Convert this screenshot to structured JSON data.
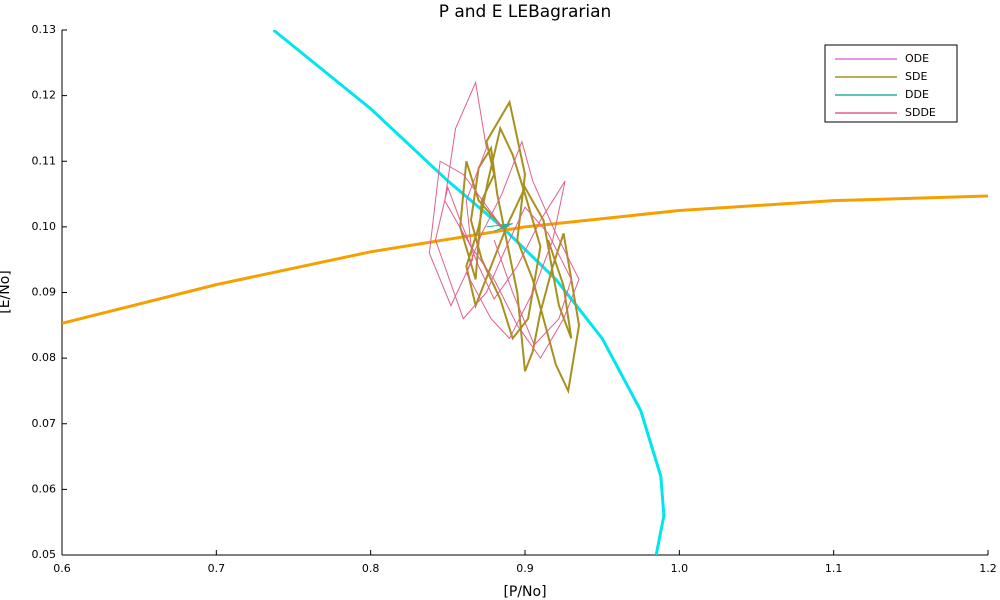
{
  "chart_data": {
    "type": "line",
    "title": "P and E LEBagrarian",
    "x_label": "[P/No]",
    "y_label": "[E/No]",
    "xlim": [
      0.6,
      1.2
    ],
    "xticks": [
      0.6,
      0.7,
      0.8,
      0.9,
      {
        "value": 1,
        "label": "1.0"
      },
      1.1,
      1.2
    ],
    "ylim": [
      0.05,
      0.13
    ],
    "yticks": [
      0.05,
      0.06,
      0.07,
      0.08,
      0.09,
      {
        "value": 0.1,
        "label": "0.10"
      },
      0.11,
      0.12,
      0.13
    ],
    "legend": "top-right",
    "nullclines": [
      {
        "color": "#00e5ee",
        "x": [
          0.737,
          0.8,
          0.85,
          0.885,
          0.92,
          0.95,
          0.975,
          0.988,
          0.99,
          0.985
        ],
        "values": [
          0.13,
          0.118,
          0.107,
          0.1,
          0.092,
          0.083,
          0.072,
          0.062,
          0.056,
          0.05
        ]
      },
      {
        "color": "#f5a000",
        "x": [
          0.6,
          0.7,
          0.8,
          0.9,
          1.0,
          1.1,
          1.2
        ],
        "values": [
          0.0853,
          0.0912,
          0.0962,
          0.1,
          0.1025,
          0.104,
          0.1047
        ]
      }
    ],
    "series": [
      {
        "name": "ODE",
        "color": "#e26fe0",
        "x": [
          0.89,
          0.882,
          0.886,
          0.884,
          0.885
        ],
        "values": [
          0.1,
          0.1005,
          0.0995,
          0.1002,
          0.1
        ]
      },
      {
        "name": "SDE",
        "color": "#a89020",
        "x": [
          0.885,
          0.87,
          0.862,
          0.858,
          0.868,
          0.872,
          0.88,
          0.875,
          0.89,
          0.9,
          0.895,
          0.905,
          0.912,
          0.92,
          0.928,
          0.935,
          0.93,
          0.925,
          0.918,
          0.91,
          0.905,
          0.9,
          0.895,
          0.888,
          0.882,
          0.878,
          0.87,
          0.865,
          0.872,
          0.884,
          0.892,
          0.902,
          0.91,
          0.9,
          0.892,
          0.884,
          0.876,
          0.87,
          0.862,
          0.868,
          0.878,
          0.888,
          0.9,
          0.912,
          0.918,
          0.922,
          0.93,
          0.925,
          0.915
        ],
        "values": [
          0.1,
          0.104,
          0.11,
          0.1,
          0.092,
          0.104,
          0.108,
          0.113,
          0.119,
          0.108,
          0.098,
          0.092,
          0.086,
          0.079,
          0.075,
          0.085,
          0.092,
          0.099,
          0.094,
          0.087,
          0.081,
          0.078,
          0.09,
          0.098,
          0.105,
          0.112,
          0.109,
          0.101,
          0.095,
          0.089,
          0.083,
          0.086,
          0.097,
          0.105,
          0.111,
          0.115,
          0.107,
          0.1,
          0.094,
          0.088,
          0.094,
          0.1,
          0.106,
          0.101,
          0.093,
          0.088,
          0.083,
          0.091,
          0.098
        ]
      },
      {
        "name": "DDE",
        "color": "#20b2a0",
        "x": [
          0.875,
          0.892,
          0.88,
          0.89,
          0.885
        ],
        "values": [
          0.1,
          0.1005,
          0.0993,
          0.1004,
          0.1
        ]
      },
      {
        "name": "SDDE",
        "color": "#e0608a",
        "x": [
          0.885,
          0.86,
          0.845,
          0.838,
          0.852,
          0.866,
          0.862,
          0.875,
          0.868,
          0.855,
          0.848,
          0.865,
          0.88,
          0.895,
          0.91,
          0.925,
          0.935,
          0.92,
          0.905,
          0.898,
          0.885,
          0.872,
          0.862,
          0.878,
          0.89,
          0.905,
          0.918,
          0.926,
          0.91,
          0.895,
          0.88,
          0.87,
          0.858,
          0.85,
          0.842,
          0.86,
          0.875,
          0.888,
          0.9,
          0.915,
          0.93,
          0.922,
          0.906,
          0.892,
          0.88
        ],
        "values": [
          0.1,
          0.108,
          0.11,
          0.096,
          0.088,
          0.095,
          0.104,
          0.112,
          0.122,
          0.115,
          0.104,
          0.097,
          0.092,
          0.085,
          0.08,
          0.086,
          0.092,
          0.099,
          0.107,
          0.113,
          0.105,
          0.099,
          0.093,
          0.086,
          0.083,
          0.09,
          0.098,
          0.107,
          0.101,
          0.094,
          0.089,
          0.094,
          0.101,
          0.106,
          0.098,
          0.086,
          0.09,
          0.097,
          0.103,
          0.099,
          0.092,
          0.086,
          0.082,
          0.09,
          0.098
        ]
      }
    ]
  }
}
